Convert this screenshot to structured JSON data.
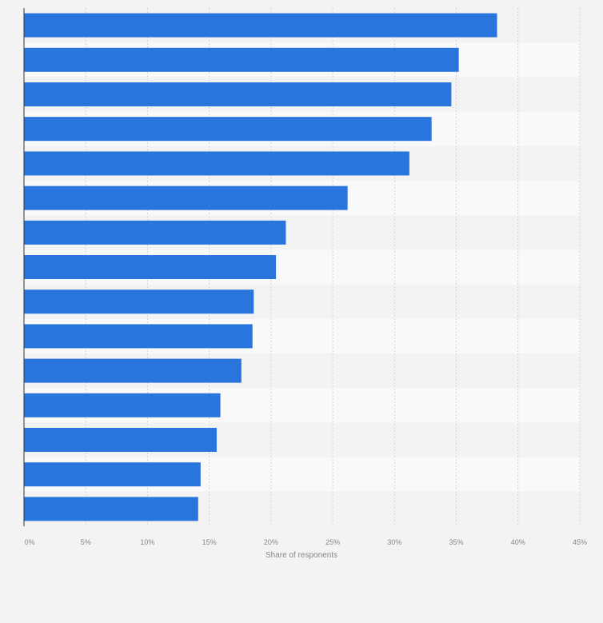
{
  "chart_data": {
    "type": "bar",
    "orientation": "horizontal",
    "categories": [
      "",
      "",
      "",
      "",
      "",
      "",
      "",
      "",
      "",
      "",
      "",
      "",
      "",
      "",
      ""
    ],
    "values": [
      38.3,
      35.2,
      34.6,
      33.0,
      31.2,
      26.2,
      21.2,
      20.4,
      18.6,
      18.5,
      17.6,
      15.9,
      15.6,
      14.3,
      14.1
    ],
    "title": "",
    "xlabel": "Share of responents",
    "ylabel": "",
    "xlim": [
      0,
      45
    ],
    "xticks": [
      "0%",
      "5%",
      "10%",
      "15%",
      "20%",
      "25%",
      "30%",
      "35%",
      "40%",
      "45%"
    ],
    "grid": true,
    "bar_color": "#2876dd"
  }
}
